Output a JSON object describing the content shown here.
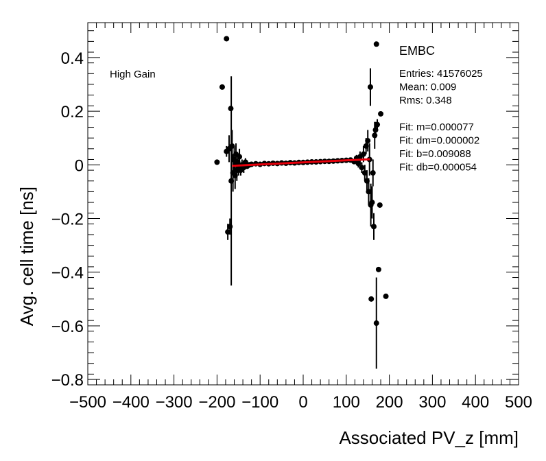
{
  "chart_data": {
    "type": "scatter",
    "xlabel": "Associated PV_z [mm]",
    "ylabel": "Avg. cell time [ns]",
    "xlim": [
      -500,
      500
    ],
    "ylim": [
      -0.82,
      0.53
    ],
    "x_ticks": [
      -500,
      -400,
      -300,
      -200,
      -100,
      0,
      100,
      200,
      300,
      400,
      500
    ],
    "x_tick_labels": [
      "−500",
      "−400",
      "−300",
      "−200",
      "−100",
      "0",
      "100",
      "200",
      "300",
      "400",
      "500"
    ],
    "y_ticks": [
      -0.8,
      -0.6,
      -0.4,
      -0.2,
      0,
      0.2,
      0.4
    ],
    "y_tick_labels": [
      "−0.8",
      "−0.6",
      "−0.4",
      "−0.2",
      "0",
      "0.2",
      "0.4"
    ],
    "annotation": "High Gain",
    "stats": {
      "name": "EMBC",
      "lines": [
        "Entries: 41576025",
        "Mean: 0.009",
        "Rms: 0.348",
        "",
        "Fit: m=0.000077",
        "Fit: dm=0.000002",
        "Fit: b=0.009088",
        "Fit: db=0.000054"
      ]
    },
    "fit": {
      "m": 7.7e-05,
      "b": 0.009088,
      "x_range": [
        -165,
        155
      ],
      "color": "#e8000b"
    },
    "marker_color": "#000000",
    "points": [
      {
        "x": -200,
        "y": 0.01,
        "err": 0.0
      },
      {
        "x": -188,
        "y": 0.29,
        "err": 0.0
      },
      {
        "x": -178,
        "y": 0.47,
        "err": 0.0
      },
      {
        "x": -178,
        "y": 0.05,
        "err": 0.02
      },
      {
        "x": -175,
        "y": -0.25,
        "err": 0.03
      },
      {
        "x": -172,
        "y": 0.06,
        "err": 0.05
      },
      {
        "x": -170,
        "y": -0.23,
        "err": 0.03
      },
      {
        "x": -168,
        "y": 0.21,
        "err": 0.0
      },
      {
        "x": -167,
        "y": -0.06,
        "err": 0.39
      },
      {
        "x": -165,
        "y": 0.07,
        "err": 0.06
      },
      {
        "x": -163,
        "y": -0.03,
        "err": 0.07
      },
      {
        "x": -160,
        "y": 0.02,
        "err": 0.05
      },
      {
        "x": -158,
        "y": -0.04,
        "err": 0.05
      },
      {
        "x": -156,
        "y": 0.04,
        "err": 0.04
      },
      {
        "x": -154,
        "y": -0.02,
        "err": 0.04
      },
      {
        "x": -152,
        "y": 0.01,
        "err": 0.03
      },
      {
        "x": -150,
        "y": -0.01,
        "err": 0.03
      },
      {
        "x": -148,
        "y": 0.03,
        "err": 0.03
      },
      {
        "x": -145,
        "y": -0.02,
        "err": 0.02
      },
      {
        "x": -142,
        "y": 0.0,
        "err": 0.02
      },
      {
        "x": -138,
        "y": -0.01,
        "err": 0.02
      },
      {
        "x": -134,
        "y": 0.01,
        "err": 0.015
      },
      {
        "x": -130,
        "y": -0.005,
        "err": 0.01
      },
      {
        "x": -125,
        "y": 0.0,
        "err": 0.01
      },
      {
        "x": -120,
        "y": 0.002,
        "err": 0.01
      },
      {
        "x": -110,
        "y": 0.004,
        "err": 0.006
      },
      {
        "x": -100,
        "y": 0.002,
        "err": 0.005
      },
      {
        "x": -90,
        "y": 0.005,
        "err": 0.004
      },
      {
        "x": -80,
        "y": 0.004,
        "err": 0.004
      },
      {
        "x": -70,
        "y": 0.006,
        "err": 0.003
      },
      {
        "x": -60,
        "y": 0.005,
        "err": 0.003
      },
      {
        "x": -50,
        "y": 0.007,
        "err": 0.003
      },
      {
        "x": -40,
        "y": 0.006,
        "err": 0.003
      },
      {
        "x": -30,
        "y": 0.008,
        "err": 0.003
      },
      {
        "x": -20,
        "y": 0.007,
        "err": 0.003
      },
      {
        "x": -10,
        "y": 0.009,
        "err": 0.003
      },
      {
        "x": 0,
        "y": 0.009,
        "err": 0.003
      },
      {
        "x": 10,
        "y": 0.01,
        "err": 0.003
      },
      {
        "x": 20,
        "y": 0.011,
        "err": 0.003
      },
      {
        "x": 30,
        "y": 0.011,
        "err": 0.003
      },
      {
        "x": 40,
        "y": 0.012,
        "err": 0.003
      },
      {
        "x": 50,
        "y": 0.013,
        "err": 0.003
      },
      {
        "x": 60,
        "y": 0.013,
        "err": 0.004
      },
      {
        "x": 70,
        "y": 0.014,
        "err": 0.004
      },
      {
        "x": 80,
        "y": 0.015,
        "err": 0.005
      },
      {
        "x": 90,
        "y": 0.016,
        "err": 0.005
      },
      {
        "x": 100,
        "y": 0.017,
        "err": 0.006
      },
      {
        "x": 110,
        "y": 0.018,
        "err": 0.008
      },
      {
        "x": 118,
        "y": 0.012,
        "err": 0.01
      },
      {
        "x": 124,
        "y": 0.025,
        "err": 0.012
      },
      {
        "x": 128,
        "y": 0.005,
        "err": 0.015
      },
      {
        "x": 132,
        "y": 0.03,
        "err": 0.02
      },
      {
        "x": 136,
        "y": -0.01,
        "err": 0.02
      },
      {
        "x": 140,
        "y": 0.04,
        "err": 0.03
      },
      {
        "x": 143,
        "y": -0.03,
        "err": 0.03
      },
      {
        "x": 146,
        "y": 0.07,
        "err": 0.03
      },
      {
        "x": 148,
        "y": -0.06,
        "err": 0.04
      },
      {
        "x": 150,
        "y": 0.09,
        "err": 0.04
      },
      {
        "x": 152,
        "y": -0.1,
        "err": 0.05
      },
      {
        "x": 154,
        "y": 0.02,
        "err": 0.06
      },
      {
        "x": 156,
        "y": 0.29,
        "err": 0.07
      },
      {
        "x": 157,
        "y": -0.15,
        "err": 0.08
      },
      {
        "x": 158,
        "y": -0.5,
        "err": 0.0
      },
      {
        "x": 160,
        "y": -0.14,
        "err": 0.06
      },
      {
        "x": 162,
        "y": -0.03,
        "err": 0.05
      },
      {
        "x": 164,
        "y": -0.23,
        "err": 0.05
      },
      {
        "x": 166,
        "y": 0.11,
        "err": 0.05
      },
      {
        "x": 168,
        "y": 0.13,
        "err": 0.03
      },
      {
        "x": 170,
        "y": 0.45,
        "err": 0.0
      },
      {
        "x": 172,
        "y": 0.15,
        "err": 0.02
      },
      {
        "x": 170,
        "y": -0.59,
        "err": 0.17
      },
      {
        "x": 175,
        "y": -0.39,
        "err": 0.0
      },
      {
        "x": 178,
        "y": -0.15,
        "err": 0.0
      },
      {
        "x": 180,
        "y": 0.19,
        "err": 0.0
      },
      {
        "x": 192,
        "y": -0.49,
        "err": 0.0
      }
    ]
  }
}
